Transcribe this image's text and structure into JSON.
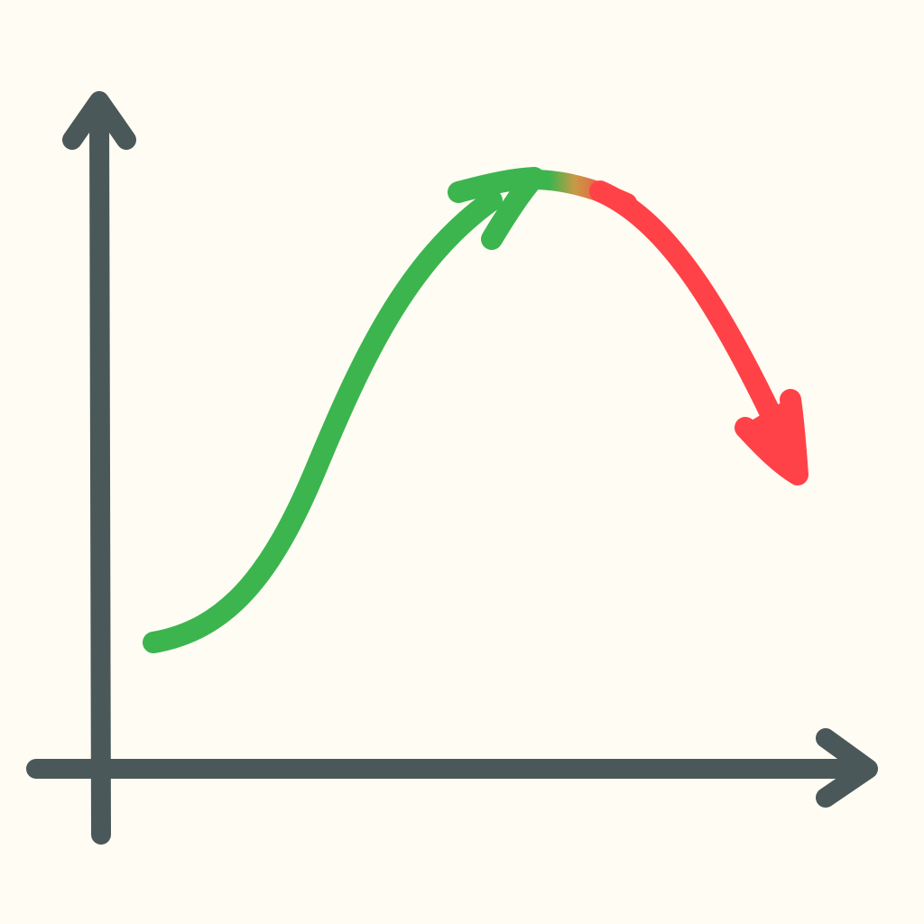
{
  "colors": {
    "background": "#FFFCF3",
    "axis": "#4A5859",
    "rise": "#3CB54F",
    "peak_transition": "#C89A45",
    "fall": "#FF4248"
  },
  "icons": {
    "y_axis_arrowhead": "arrow-up-icon",
    "x_axis_arrowhead": "arrow-right-icon",
    "rise_arrowhead": "arrow-up-right-icon",
    "fall_arrowhead": "arrow-down-right-icon"
  },
  "diagram": {
    "shape": "rise-peak-decline curve",
    "rising_segment_color": "green",
    "falling_segment_color": "red"
  }
}
